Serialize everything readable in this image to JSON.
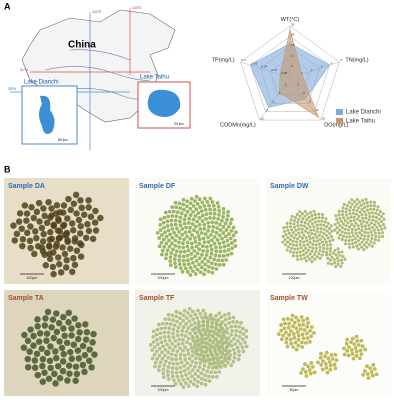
{
  "panel_a": {
    "label": "A",
    "map": {
      "country": "China",
      "lakes": [
        "Lake Dianchi",
        "Lake Taihu"
      ],
      "scales": [
        "50 km",
        "20 km"
      ],
      "coords": [
        "102°E",
        "120°E",
        "31°N",
        "25°N"
      ]
    }
  },
  "chart_data": {
    "type": "radar",
    "axes": [
      {
        "name": "WT(°C)",
        "lim": [
          0,
          30
        ],
        "ticks": [
          6,
          12,
          18,
          24,
          30
        ]
      },
      {
        "name": "TN(mg/L)",
        "lim": [
          0,
          5
        ],
        "ticks": [
          1,
          2,
          3,
          4,
          5
        ]
      },
      {
        "name": "DO(mg/L)",
        "lim": [
          0,
          15
        ],
        "ticks": [
          3,
          6,
          9,
          12,
          15
        ]
      },
      {
        "name": "CODMn(mg/L)",
        "lim": [
          0,
          10
        ],
        "ticks": [
          2,
          4,
          6,
          8,
          10
        ]
      },
      {
        "name": "TP(mg/L)",
        "lim": [
          0,
          0.4
        ],
        "ticks": [
          0.08,
          0.16,
          0.24,
          0.32,
          0.4
        ]
      }
    ],
    "series": [
      {
        "name": "Lake Dianchi",
        "color": "#7fa9d8",
        "values": [
          20,
          4,
          7.5,
          7,
          0.32
        ]
      },
      {
        "name": "Lake Taihu",
        "color": "#c49a6c",
        "values": [
          28,
          1.2,
          14,
          3.5,
          0.08
        ]
      }
    ]
  },
  "panel_b": {
    "label": "B",
    "samples": [
      {
        "name": "Sample DA",
        "scale": "100μm"
      },
      {
        "name": "Sample DF",
        "scale": "100μm"
      },
      {
        "name": "Sample DW",
        "scale": "100μm"
      },
      {
        "name": "Sample TA"
      },
      {
        "name": "Sample TF",
        "scale": "100μm"
      },
      {
        "name": "Sample TW",
        "scale": "50μm"
      }
    ]
  }
}
